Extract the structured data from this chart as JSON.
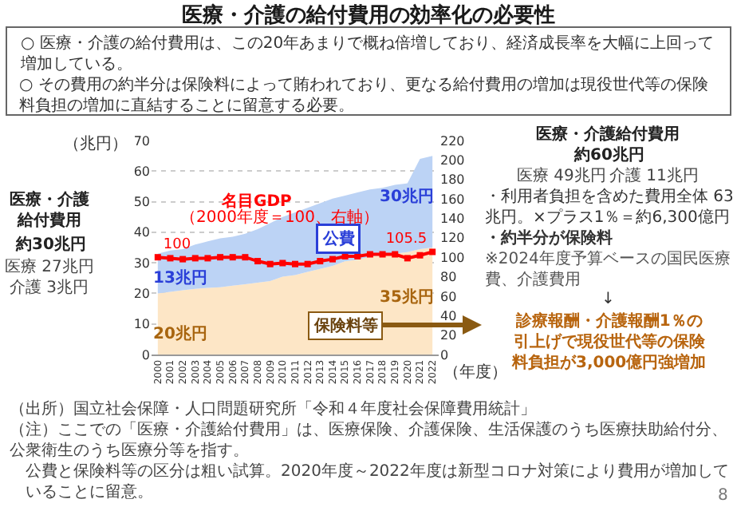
{
  "chart_data": {
    "type": "area",
    "title": "医療・介護の給付費用の効率化の必要性",
    "xlabel": "（年度）",
    "ylabel": "（兆円）",
    "x": [
      2000,
      2001,
      2002,
      2003,
      2004,
      2005,
      2006,
      2007,
      2008,
      2009,
      2010,
      2011,
      2012,
      2013,
      2014,
      2015,
      2016,
      2017,
      2018,
      2019,
      2020,
      2021,
      2022
    ],
    "stacked": true,
    "series": [
      {
        "name": "保険料等",
        "color": "#fde6c6",
        "values": [
          20,
          20.5,
          21,
          21.5,
          21.8,
          22,
          22.5,
          23,
          23.5,
          24,
          25.5,
          26,
          27,
          28,
          29,
          30.5,
          31,
          32,
          32.5,
          33,
          33.5,
          34.5,
          35
        ]
      },
      {
        "name": "公費",
        "color": "#bcd3f5",
        "values": [
          13,
          13.5,
          13.5,
          14.5,
          15.2,
          16,
          16,
          16.5,
          17.5,
          19,
          19.5,
          20.5,
          21,
          21.5,
          22,
          21.5,
          22,
          22,
          22,
          22.5,
          22.5,
          29.5,
          30
        ]
      },
      {
        "name": "名目GDP",
        "type": "line",
        "axis": "y2",
        "color": "#ff0000",
        "marker": "square",
        "values": [
          100,
          99,
          98,
          99,
          99,
          100,
          100,
          100,
          96,
          93,
          94,
          93,
          93,
          96,
          98,
          101,
          101,
          103,
          103,
          103,
          99,
          102,
          105.5
        ],
        "value_labels": [
          "100",
          null,
          null,
          null,
          null,
          null,
          null,
          null,
          null,
          null,
          null,
          null,
          null,
          null,
          null,
          null,
          null,
          null,
          null,
          null,
          null,
          null,
          "105.5"
        ]
      }
    ],
    "xlim": [
      1999.5,
      2022.5
    ],
    "xticks": [
      2000,
      2001,
      2002,
      2003,
      2004,
      2005,
      2006,
      2007,
      2008,
      2009,
      2010,
      2011,
      2012,
      2013,
      2014,
      2015,
      2016,
      2017,
      2018,
      2019,
      2020,
      2021,
      2022
    ],
    "ylim": [
      0,
      70
    ],
    "yticks": [
      0,
      10,
      20,
      30,
      40,
      50,
      60,
      70
    ],
    "y2lim": [
      0,
      220
    ],
    "y2ticks": [
      0,
      20,
      40,
      60,
      80,
      100,
      120,
      140,
      160,
      180,
      200,
      220
    ],
    "grid": "y",
    "annotations": [
      "○ 医療・介護の給付費用は、この20年あまりで概ね倍増しており、経済成長率を大幅に上回って増加している。",
      "○ その費用の約半分は保険料によって賄われており、更なる給付費用の増加は現役世代等の保険料負担の増加に直結することに留意する必要。",
      "医療・介護給付費用",
      "約30兆円",
      "医療 27兆円",
      "介護 3兆円",
      "医療・介護給付費用",
      "約60兆円",
      "医療 49兆円",
      "介護 11兆円",
      "・利用者負担を含めた費用全体 63兆円。×プラス1％＝約6,300億円",
      "・約半分が保険料",
      "※2024年度予算ベースの国民医療費、介護費用",
      "↓",
      "診療報酬・介護報酬1％の引上げで現役世代等の保険料負担が3,000億円強増加",
      "（2000年度＝100、右軸）",
      "（出所）国立社会保障・人口問題研究所「令和４年度社会保障費用統計」",
      "（注）ここでの「医療・介護給付費用」は、医療保険、介護保険、生活保護のうち医療扶助給付分、公衆衛生のうち医療分等を指す。",
      "公費と保険料等の区分は粗い試算。2020年度～2022年度は新型コロナ対策により費用が増加していることに留意。",
      "8",
      "13兆円",
      "20兆円",
      "30兆円",
      "35兆円"
    ]
  }
}
